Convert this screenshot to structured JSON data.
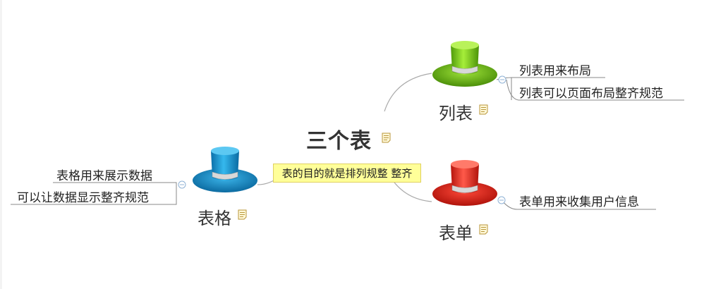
{
  "central": {
    "title": "三个表"
  },
  "relationship_label": "表的目的就是排列规整 整齐",
  "nodes": {
    "list": {
      "label": "列表",
      "hat_color": "#7ed321",
      "leaves": [
        "列表用来布局",
        "列表可以页面布局整齐规范"
      ]
    },
    "table": {
      "label": "表格",
      "hat_color": "#1ea0dc",
      "leaves": [
        "表格用来展示数据",
        "可以让数据显示整齐规范"
      ]
    },
    "form": {
      "label": "表单",
      "hat_color": "#e8261c",
      "leaves": [
        "表单用来收集用户信息"
      ]
    }
  },
  "colors": {
    "connector": "#999999",
    "underline": "#888888",
    "note_icon": "#c8a64a",
    "collapse_button": "#8fb2d6"
  }
}
